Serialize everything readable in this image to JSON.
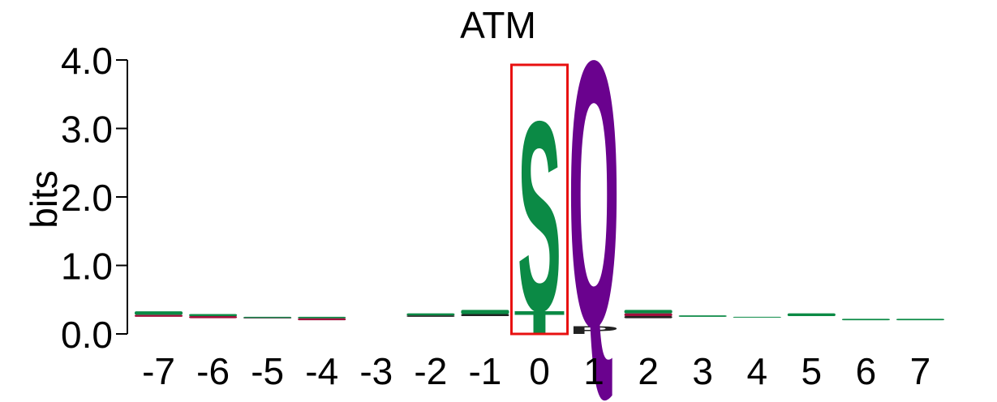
{
  "chart_data": {
    "type": "sequence-logo",
    "title": "ATM",
    "ylabel": "bits",
    "xlabel": "",
    "ylim": [
      0,
      4.0
    ],
    "yticks": [
      "0.0",
      "1.0",
      "2.0",
      "3.0",
      "4.0"
    ],
    "positions": [
      "-7",
      "-6",
      "-5",
      "-4",
      "-3",
      "-2",
      "-1",
      "0",
      "1",
      "2",
      "3",
      "4",
      "5",
      "6",
      "7"
    ],
    "highlight_position": "0",
    "colors": {
      "S": "#0b8a45",
      "T": "#0b8a45",
      "Q": "#6a028e",
      "P": "#222222",
      "minor_green": "#0b8a45",
      "minor_red": "#a0103c",
      "minor_black": "#222222",
      "highlight_box": "#e81010"
    },
    "stacks": [
      {
        "pos": "-7",
        "letters": [
          {
            "c": "minor_red",
            "h": 0.03
          },
          {
            "c": "minor_green",
            "h": 0.05
          }
        ]
      },
      {
        "pos": "-6",
        "letters": [
          {
            "c": "minor_red",
            "h": 0.03
          },
          {
            "c": "minor_green",
            "h": 0.03
          }
        ]
      },
      {
        "pos": "-5",
        "letters": [
          {
            "c": "minor_black",
            "h": 0.01
          },
          {
            "c": "minor_green",
            "h": 0.01
          }
        ]
      },
      {
        "pos": "-4",
        "letters": [
          {
            "c": "minor_red",
            "h": 0.03
          },
          {
            "c": "minor_green",
            "h": 0.02
          }
        ]
      },
      {
        "pos": "-3",
        "letters": []
      },
      {
        "pos": "-2",
        "letters": [
          {
            "c": "minor_black",
            "h": 0.02
          },
          {
            "c": "minor_green",
            "h": 0.03
          }
        ]
      },
      {
        "pos": "-1",
        "letters": [
          {
            "c": "minor_black",
            "h": 0.03
          },
          {
            "c": "minor_green",
            "h": 0.06
          }
        ]
      },
      {
        "pos": "0",
        "letters": [
          {
            "c": "T",
            "letter": "T",
            "h": 0.35
          },
          {
            "c": "S",
            "letter": "S",
            "h": 2.85
          }
        ]
      },
      {
        "pos": "1",
        "letters": [
          {
            "c": "P",
            "letter": "P",
            "h": 0.12
          },
          {
            "c": "Q",
            "letter": "Q",
            "h": 4.0
          }
        ]
      },
      {
        "pos": "2",
        "letters": [
          {
            "c": "minor_black",
            "h": 0.03
          },
          {
            "c": "minor_red",
            "h": 0.04
          },
          {
            "c": "minor_green",
            "h": 0.05
          }
        ]
      },
      {
        "pos": "3",
        "letters": [
          {
            "c": "minor_green",
            "h": 0.02
          }
        ]
      },
      {
        "pos": "4",
        "letters": [
          {
            "c": "minor_green",
            "h": 0.01
          }
        ]
      },
      {
        "pos": "5",
        "letters": [
          {
            "c": "minor_green",
            "h": 0.04
          }
        ]
      },
      {
        "pos": "6",
        "letters": [
          {
            "c": "minor_green",
            "h": 0.02
          }
        ]
      },
      {
        "pos": "7",
        "letters": [
          {
            "c": "minor_green",
            "h": 0.02
          }
        ]
      }
    ],
    "baseline": {
      "-7": 0.25,
      "-6": 0.23,
      "-5": 0.23,
      "-4": 0.2,
      "-3": 0.22,
      "-2": 0.25,
      "-1": 0.26,
      "0": 0.0,
      "1": 0.0,
      "2": 0.23,
      "3": 0.25,
      "4": 0.24,
      "5": 0.26,
      "6": 0.2,
      "7": 0.2
    },
    "grid": false,
    "legend": "none"
  }
}
